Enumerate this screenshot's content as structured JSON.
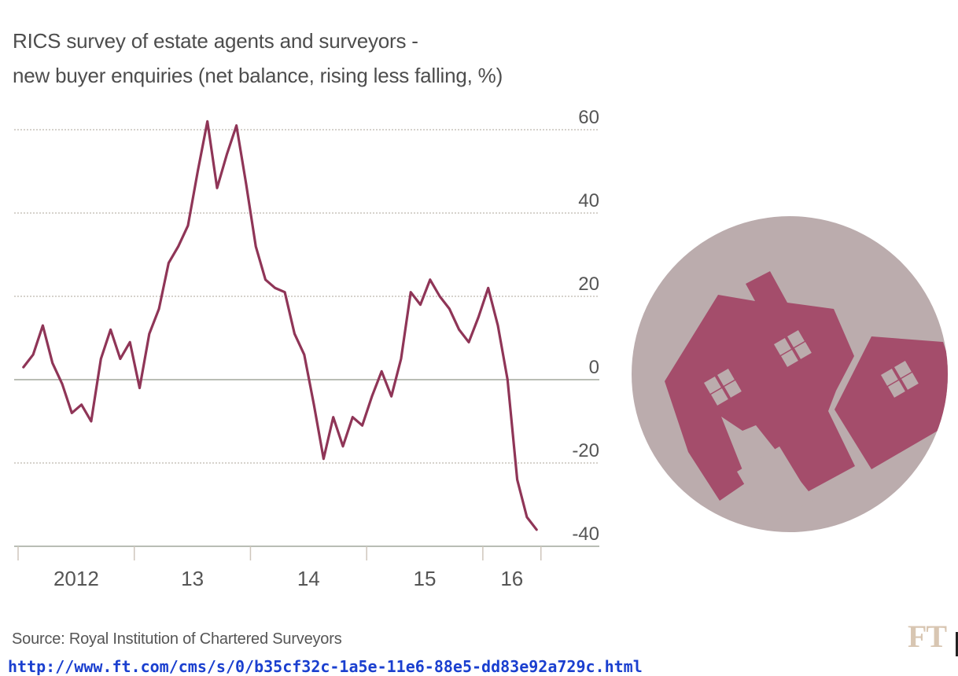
{
  "title": {
    "line1": "RICS survey of estate agents and surveyors -",
    "line2": "new buyer enquiries (net balance, rising less falling, %)"
  },
  "source": "Source: Royal Institution of Chartered Surveyors",
  "url": "http://www.ft.com/cms/s/0/b35cf32c-1a5e-11e6-88e5-dd83e92a729c.html",
  "logo": "FT",
  "colors": {
    "line": "#8f3557",
    "grid": "#c9c3bb",
    "zero_line": "#b9bdb5",
    "icon_circle": "#bbacad",
    "icon_house": "#a44d6b",
    "logo": "#d8c6b2"
  },
  "illustration": {
    "icon": "houses-icon"
  },
  "chart_data": {
    "type": "line",
    "title": "RICS survey of estate agents and surveyors - new buyer enquiries (net balance, rising less falling, %)",
    "xlabel": "",
    "ylabel": "",
    "ylim": [
      -40,
      60
    ],
    "xlim_months": [
      0,
      54
    ],
    "yticks": [
      60,
      40,
      20,
      0,
      -20,
      -40
    ],
    "ytick_labels": [
      "60",
      "40",
      "20",
      "0",
      "-20",
      "-40"
    ],
    "xtick_labels": [
      {
        "label": "2012",
        "year_start_month": 0
      },
      {
        "label": "13",
        "year_start_month": 12
      },
      {
        "label": "14",
        "year_start_month": 24
      },
      {
        "label": "15",
        "year_start_month": 36
      },
      {
        "label": "16",
        "year_start_month": 48
      }
    ],
    "grid": true,
    "legend": "none",
    "series": [
      {
        "name": "New buyer enquiries net balance",
        "start": "2012-01",
        "frequency": "monthly",
        "values": [
          3,
          6,
          13,
          4,
          -1,
          -8,
          -6,
          -10,
          5,
          12,
          5,
          9,
          -2,
          11,
          17,
          28,
          32,
          37,
          50,
          62,
          46,
          54,
          61,
          47,
          32,
          24,
          22,
          21,
          11,
          6,
          -6,
          -19,
          -9,
          -16,
          -9,
          -11,
          -4,
          2,
          -4,
          5,
          21,
          18,
          24,
          20,
          17,
          12,
          9,
          15,
          22,
          13,
          0,
          -24,
          -33,
          -36
        ]
      }
    ]
  }
}
